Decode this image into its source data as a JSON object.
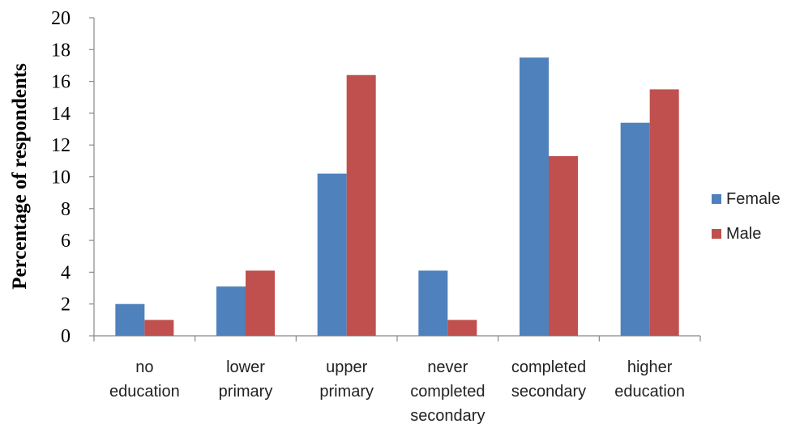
{
  "chart_data": {
    "type": "bar",
    "title": "",
    "xlabel": "",
    "ylabel": "Percentage of respondents",
    "ylim": [
      0,
      20
    ],
    "yticks": [
      "0",
      "2",
      "4",
      "6",
      "8",
      "10",
      "12",
      "14",
      "16",
      "18",
      "20"
    ],
    "grid": false,
    "legend_position": "right",
    "categories": [
      [
        "no",
        "education"
      ],
      [
        "lower",
        "primary"
      ],
      [
        "upper",
        "primary"
      ],
      [
        "never",
        "completed",
        "secondary"
      ],
      [
        "completed",
        "secondary"
      ],
      [
        "higher",
        "education"
      ]
    ],
    "series": [
      {
        "name": "Female",
        "color": "#4F81BD",
        "values": [
          2,
          3.1,
          10.2,
          4.1,
          17.5,
          13.4
        ]
      },
      {
        "name": "Male",
        "color": "#C0504D",
        "values": [
          1,
          4.1,
          16.4,
          1,
          11.3,
          15.5
        ]
      }
    ]
  }
}
